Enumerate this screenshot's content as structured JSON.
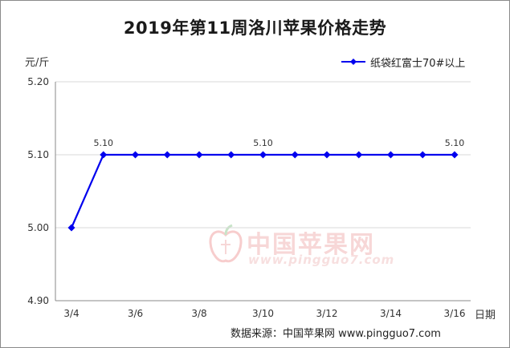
{
  "chart_data": {
    "type": "line",
    "title": "2019年第11周洛川苹果价格走势",
    "ylabel": "元/斤",
    "xlabel": "日期",
    "ylim": [
      4.9,
      5.2
    ],
    "yticks": [
      "4.90",
      "5.00",
      "5.10",
      "5.20"
    ],
    "grid": true,
    "legend_position": "top-right",
    "x": [
      "3/4",
      "3/5",
      "3/6",
      "3/7",
      "3/8",
      "3/9",
      "3/10",
      "3/11",
      "3/12",
      "3/13",
      "3/14",
      "3/15",
      "3/16"
    ],
    "x_tick_labels": [
      "3/4",
      "3/6",
      "3/8",
      "3/10",
      "3/12",
      "3/14",
      "3/16"
    ],
    "series": [
      {
        "name": "纸袋红富士70#以上",
        "color": "#0000ee",
        "values": [
          5.0,
          5.1,
          5.1,
          5.1,
          5.1,
          5.1,
          5.1,
          5.1,
          5.1,
          5.1,
          5.1,
          5.1,
          5.1
        ]
      }
    ],
    "data_labels": [
      {
        "index": 1,
        "text": "5.10"
      },
      {
        "index": 6,
        "text": "5.10"
      },
      {
        "index": 12,
        "text": "5.10"
      }
    ]
  },
  "source": "数据来源：中国苹果网 www.pingguo7.com",
  "watermark": {
    "cn": "中国苹果网",
    "en": "www.pingguo7.com"
  }
}
